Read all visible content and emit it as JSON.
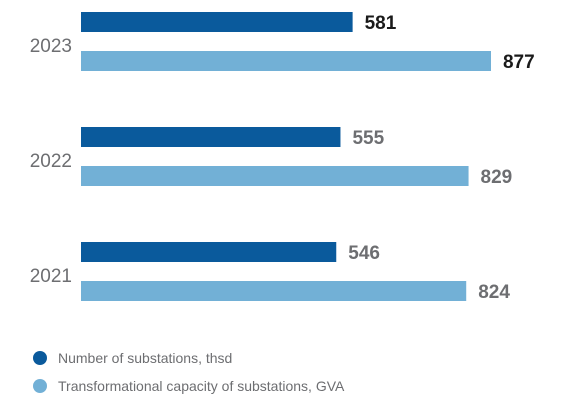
{
  "chart_data": {
    "type": "bar",
    "orientation": "horizontal",
    "categories": [
      "2023",
      "2022",
      "2021"
    ],
    "series": [
      {
        "name": "Number of substations, thsd",
        "values": [
          581,
          555,
          546
        ],
        "color": "#0a5a9c"
      },
      {
        "name": "Transformational capacity of substations, GVA",
        "values": [
          877,
          829,
          824
        ],
        "color": "#72b0d6"
      }
    ],
    "data_labels": [
      [
        "581",
        "555",
        "546"
      ],
      [
        "877",
        "829",
        "824"
      ]
    ],
    "highlight_category": "2023",
    "highlight_label_color": "#1a1a1a",
    "label_color": "#6d6e71",
    "xlim": [
      0,
      877
    ],
    "grid": false,
    "legend_position": "bottom-left"
  }
}
